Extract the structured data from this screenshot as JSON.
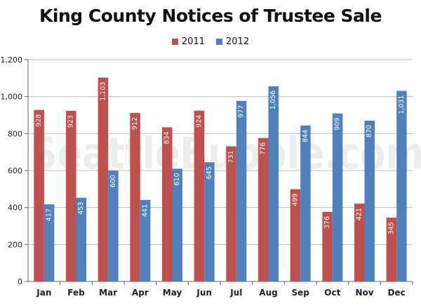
{
  "chart_data": {
    "type": "bar",
    "title": "King County Notices of Trustee Sale",
    "categories": [
      "Jan",
      "Feb",
      "Mar",
      "Apr",
      "May",
      "Jun",
      "Jul",
      "Aug",
      "Sep",
      "Oct",
      "Nov",
      "Dec"
    ],
    "series": [
      {
        "name": "2011",
        "color": "#c0504d",
        "values": [
          928,
          923,
          1103,
          912,
          834,
          924,
          731,
          776,
          499,
          376,
          421,
          345
        ],
        "labels": [
          "928",
          "923",
          "1,103",
          "912",
          "834",
          "924",
          "731",
          "776",
          "499",
          "376",
          "421",
          "345"
        ]
      },
      {
        "name": "2012",
        "color": "#4f81bd",
        "values": [
          417,
          453,
          600,
          441,
          610,
          645,
          977,
          1056,
          844,
          909,
          870,
          1031
        ],
        "labels": [
          "417",
          "453",
          "600",
          "441",
          "610",
          "645",
          "977",
          "1,056",
          "844",
          "909",
          "870",
          "1,031"
        ]
      }
    ],
    "ylim": [
      0,
      1200
    ],
    "yticks": [
      0,
      200,
      400,
      600,
      800,
      1000,
      1200
    ],
    "ytick_labels": [
      "0",
      "200",
      "400",
      "600",
      "800",
      "1,000",
      "1,200"
    ],
    "xlabel": "",
    "ylabel": "",
    "grid": true,
    "legend_position": "top-center",
    "watermark": "SeattleBubble.com"
  }
}
